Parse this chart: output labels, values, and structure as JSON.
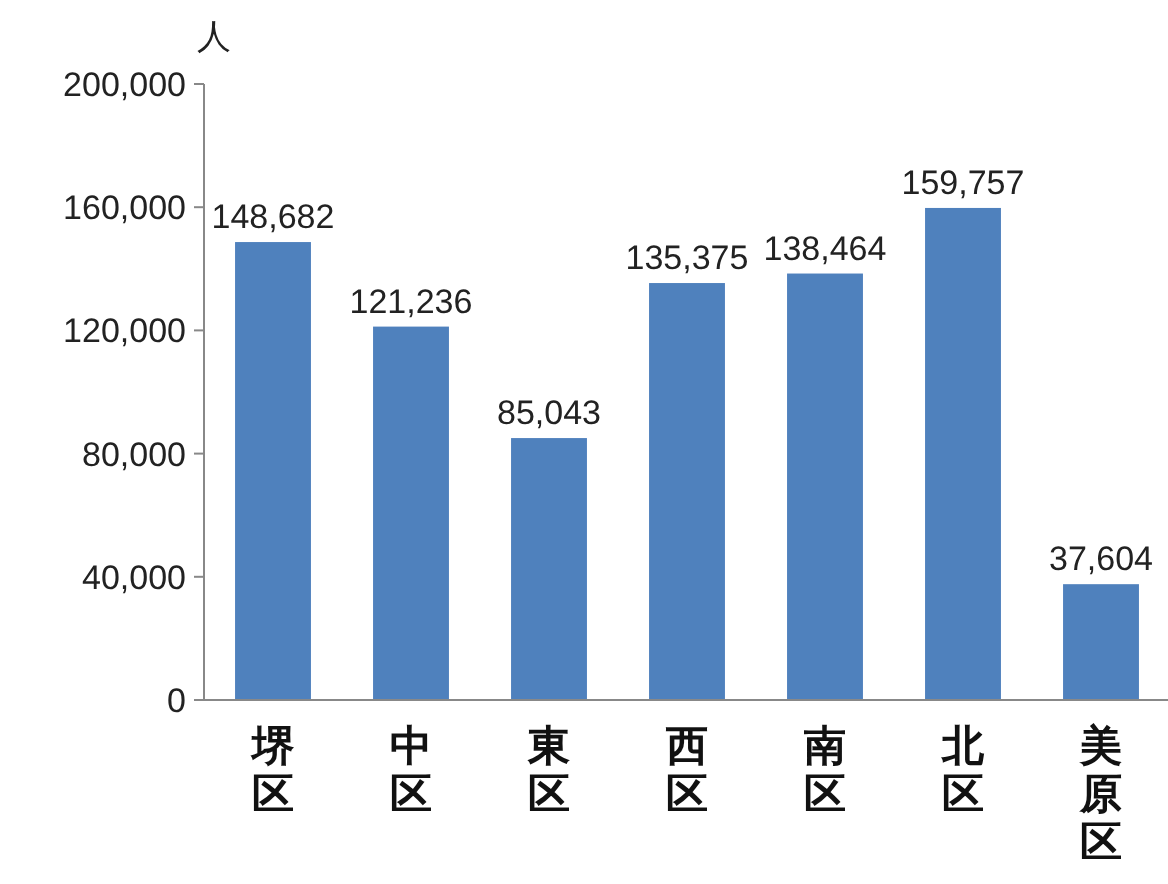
{
  "chart_data": {
    "type": "bar",
    "ylabel": "人",
    "categories": [
      "堺区",
      "中区",
      "東区",
      "西区",
      "南区",
      "北区",
      "美原区"
    ],
    "series": [
      {
        "color": "#4f81bd",
        "values": [
          148682,
          121236,
          85043,
          135375,
          138464,
          159757,
          37604
        ],
        "value_labels": [
          "148,682",
          "121,236",
          "85,043",
          "135,375",
          "138,464",
          "159,757",
          "37,604"
        ]
      }
    ],
    "ylim": [
      0,
      200000
    ],
    "yticks": [
      0,
      {
        "value": 40000,
        "label": "40,000"
      },
      {
        "value": 80000,
        "label": "80,000"
      },
      {
        "value": 120000,
        "label": "120,000"
      },
      {
        "value": 160000,
        "label": "160,000"
      },
      {
        "value": 200000,
        "label": "200,000"
      }
    ],
    "grid": false
  }
}
